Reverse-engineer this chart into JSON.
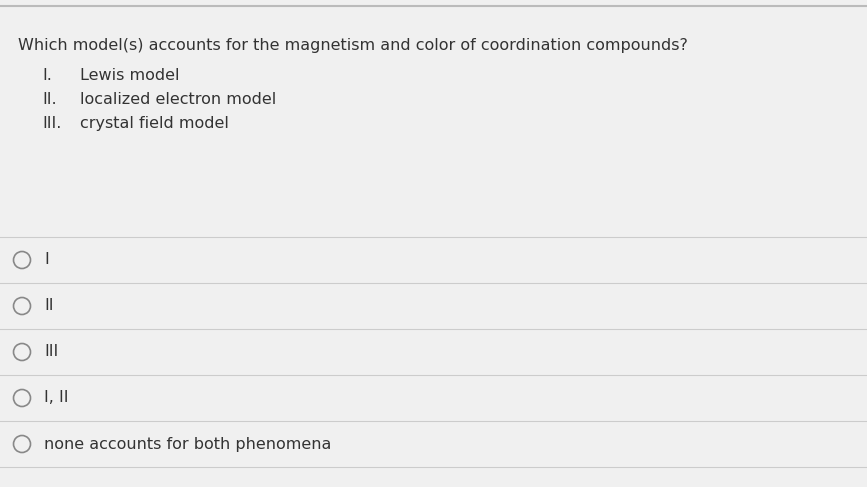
{
  "question": "Which model(s) accounts for the magnetism and color of coordination compounds?",
  "items": [
    {
      "label": "I.",
      "text": "Lewis model"
    },
    {
      "label": "II.",
      "text": "localized electron model"
    },
    {
      "label": "III.",
      "text": "crystal field model"
    }
  ],
  "options": [
    "I",
    "II",
    "III",
    "I, II",
    "none accounts for both phenomena"
  ],
  "bg_color": "#f0f0f0",
  "content_bg": "#ffffff",
  "text_color": "#333333",
  "separator_color": "#cccccc",
  "top_bar_color": "#bbbbbb",
  "question_fontsize": 11.5,
  "item_fontsize": 11.5,
  "option_fontsize": 11.5,
  "circle_color": "#888888"
}
